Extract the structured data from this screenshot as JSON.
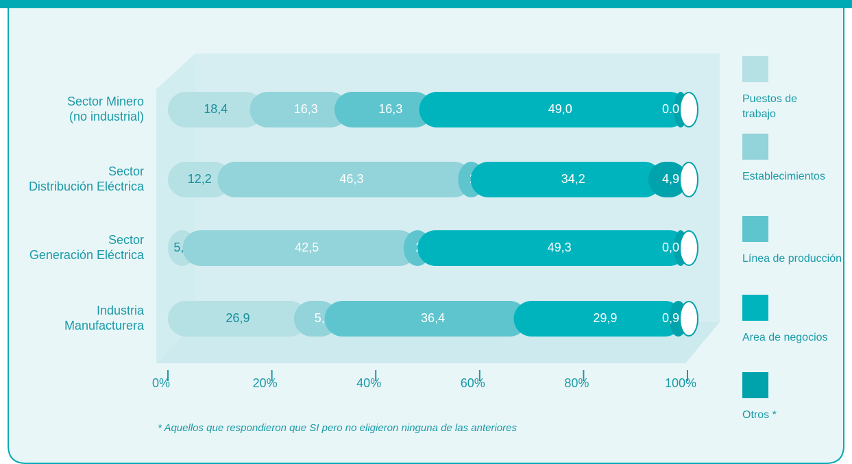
{
  "chart_data": {
    "type": "stacked_barh",
    "categories": [
      [
        "Sector Minero",
        "(no industrial)"
      ],
      [
        "Sector",
        "Distribución Eléctrica"
      ],
      [
        "Sector",
        "Generación Eléctrica"
      ],
      [
        "Industria",
        "Manufacturera"
      ]
    ],
    "series": [
      {
        "name": "Puestos de trabajo",
        "color": "#b5e1e5",
        "values": [
          18.4,
          12.2,
          5.5,
          26.9
        ],
        "value_labels": [
          "18,4",
          "12,2",
          "5,5",
          "26,9"
        ]
      },
      {
        "name": "Establecimientos",
        "color": "#93d3da",
        "values": [
          16.3,
          46.3,
          42.5,
          5.9
        ],
        "value_labels": [
          "16,3",
          "46,3",
          "42,5",
          "5,9"
        ]
      },
      {
        "name": "Línea de producción",
        "color": "#5ec5ce",
        "values": [
          16.3,
          2.4,
          2.7,
          36.4
        ],
        "value_labels": [
          "16,3",
          "2,4",
          "2,7",
          "36,4"
        ]
      },
      {
        "name": "Area de negocios",
        "color": "#00b4be",
        "values": [
          49.0,
          34.2,
          49.3,
          29.9
        ],
        "value_labels": [
          "49,0",
          "34,2",
          "49,3",
          "29,9"
        ]
      },
      {
        "name": "Otros *",
        "color": "#00a2ac",
        "values": [
          0.0,
          4.9,
          0.0,
          0.9
        ],
        "value_labels": [
          "0.0",
          "4,9",
          "0,0",
          "0,9"
        ]
      }
    ],
    "xlim": [
      0,
      100
    ],
    "xticks": [
      {
        "value": 0,
        "label": "0%"
      },
      {
        "value": 20,
        "label": "20%"
      },
      {
        "value": 40,
        "label": "40%"
      },
      {
        "value": 60,
        "label": "60%"
      },
      {
        "value": 80,
        "label": "80%"
      },
      {
        "value": 100,
        "label": "100%"
      }
    ],
    "footnote": "* Aquellos que respondieron que SI pero no eligieron ninguna de las anteriores"
  }
}
